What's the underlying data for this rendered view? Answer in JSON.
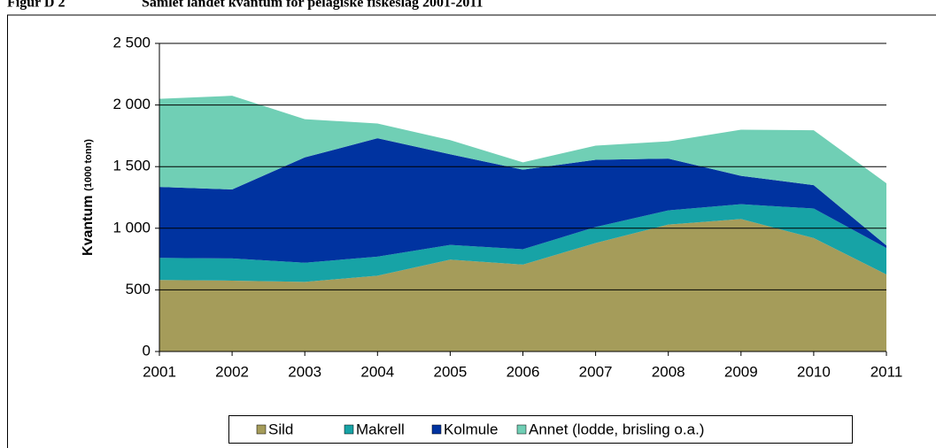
{
  "chart_data": {
    "type": "stacked_area",
    "label": "Figur D 2",
    "title": "Samlet landet kvantum for pelagiske fiskeslag 2001-2011",
    "ylabel": "Kvantum",
    "ylabel_unit": "(1000 tonn)",
    "x": [
      2001,
      2002,
      2003,
      2004,
      2005,
      2006,
      2007,
      2008,
      2009,
      2010,
      2011
    ],
    "xlim": [
      2001,
      2011
    ],
    "xticks": [
      2001,
      2002,
      2003,
      2004,
      2005,
      2006,
      2007,
      2008,
      2009,
      2010,
      2011
    ],
    "ylim": [
      0,
      2500
    ],
    "yticks": [
      0,
      500,
      {
        "value": 1000,
        "label": "1 000"
      },
      {
        "value": 1500,
        "label": "1 500"
      },
      {
        "value": 2000,
        "label": "2 000"
      },
      {
        "value": 2500,
        "label": "2 500"
      }
    ],
    "grid": true,
    "legend": "bottom",
    "series": [
      {
        "name": "Sild",
        "color": "#a59c5a",
        "values": [
          580,
          575,
          565,
          615,
          745,
          705,
          880,
          1030,
          1075,
          920,
          625
        ]
      },
      {
        "name": "Makrell",
        "color": "#17a3a6",
        "values": [
          180,
          180,
          155,
          155,
          120,
          125,
          130,
          115,
          120,
          240,
          215
        ]
      },
      {
        "name": "Kolmule",
        "color": "#0033a0",
        "values": [
          575,
          560,
          855,
          960,
          735,
          645,
          545,
          420,
          230,
          190,
          20
        ]
      },
      {
        "name": "Annet (lodde, brisling o.a.)",
        "color": "#70cfb5",
        "values": [
          715,
          760,
          310,
          120,
          115,
          60,
          115,
          140,
          375,
          445,
          505
        ]
      }
    ]
  }
}
